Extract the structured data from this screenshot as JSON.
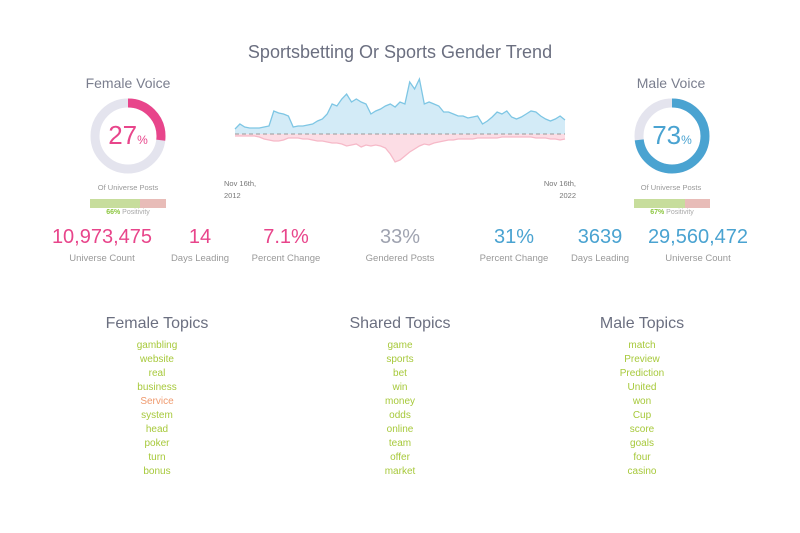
{
  "title": "Sportsbetting Or Sports Gender Trend",
  "colors": {
    "female": "#e8458b",
    "male": "#4aa3d1",
    "neutral": "#9fa3b0",
    "track": "#e4e4ee",
    "positive": "#c7dd9c",
    "negative": "#e8bcb8",
    "topic": "#a7c93b",
    "topic_alt": "#ef9a6e"
  },
  "female": {
    "label": "Female Voice",
    "percent": 27,
    "percent_value": "27",
    "percent_sign": "%",
    "sub": "Of Universe Posts",
    "positivity": 66,
    "positivity_value": "66%",
    "positivity_label": "Positivity"
  },
  "male": {
    "label": "Male Voice",
    "percent": 73,
    "percent_value": "73",
    "percent_sign": "%",
    "sub": "Of Universe Posts",
    "positivity": 67,
    "positivity_value": "67%",
    "positivity_label": "Positivity"
  },
  "chart_data": {
    "type": "area",
    "x_start_label": [
      "Nov 16th,",
      "2012"
    ],
    "x_end_label": [
      "Nov 16th,",
      "2022"
    ],
    "series": [
      {
        "values": [
          5,
          10,
          7,
          6,
          6,
          6,
          7,
          8,
          23,
          21,
          20,
          18,
          7,
          8,
          8,
          9,
          10,
          13,
          15,
          20,
          30,
          28,
          35,
          40,
          32,
          35,
          32,
          30,
          20,
          23,
          25,
          28,
          30,
          27,
          32,
          30,
          52,
          45,
          55,
          30,
          32,
          30,
          28,
          22,
          22,
          20,
          18,
          18,
          16,
          17,
          18,
          10,
          13,
          17,
          22,
          20,
          23,
          17,
          15,
          17,
          20,
          23,
          22,
          18,
          15,
          13,
          15,
          18,
          14
        ]
      },
      {
        "values": [
          2,
          2,
          2,
          2,
          2,
          3,
          5,
          6,
          7,
          7,
          6,
          4,
          4,
          4,
          5,
          5,
          6,
          7,
          7,
          8,
          9,
          9,
          10,
          12,
          11,
          10,
          13,
          11,
          12,
          11,
          12,
          14,
          20,
          28,
          26,
          22,
          18,
          15,
          12,
          10,
          11,
          9,
          8,
          7,
          6,
          6,
          5,
          5,
          5,
          5,
          4,
          4,
          4,
          4,
          4,
          3,
          3,
          3,
          3,
          3,
          3,
          3,
          4,
          4,
          4,
          5,
          5,
          6,
          5
        ]
      }
    ]
  },
  "stats": [
    {
      "value": "10,973,475",
      "label": "Universe Count",
      "side": "female"
    },
    {
      "value": "14",
      "label": "Days Leading",
      "side": "female"
    },
    {
      "value": "7.1%",
      "label": "Percent Change",
      "side": "female"
    },
    {
      "value": "33%",
      "label": "Gendered Posts",
      "side": "neutral"
    },
    {
      "value": "31%",
      "label": "Percent Change",
      "side": "male"
    },
    {
      "value": "3639",
      "label": "Days Leading",
      "side": "male"
    },
    {
      "value": "29,560,472",
      "label": "Universe Count",
      "side": "male"
    }
  ],
  "topics": [
    {
      "title": "Female Topics",
      "items": [
        "gambling",
        "website",
        "real",
        "business",
        "Service",
        "system",
        "head",
        "poker",
        "turn",
        "bonus"
      ]
    },
    {
      "title": "Shared Topics",
      "items": [
        "game",
        "sports",
        "bet",
        "win",
        "money",
        "odds",
        "online",
        "team",
        "offer",
        "market"
      ]
    },
    {
      "title": "Male Topics",
      "items": [
        "match",
        "Preview",
        "Prediction",
        "United",
        "won",
        "Cup",
        "score",
        "goals",
        "four",
        "casino"
      ]
    }
  ]
}
